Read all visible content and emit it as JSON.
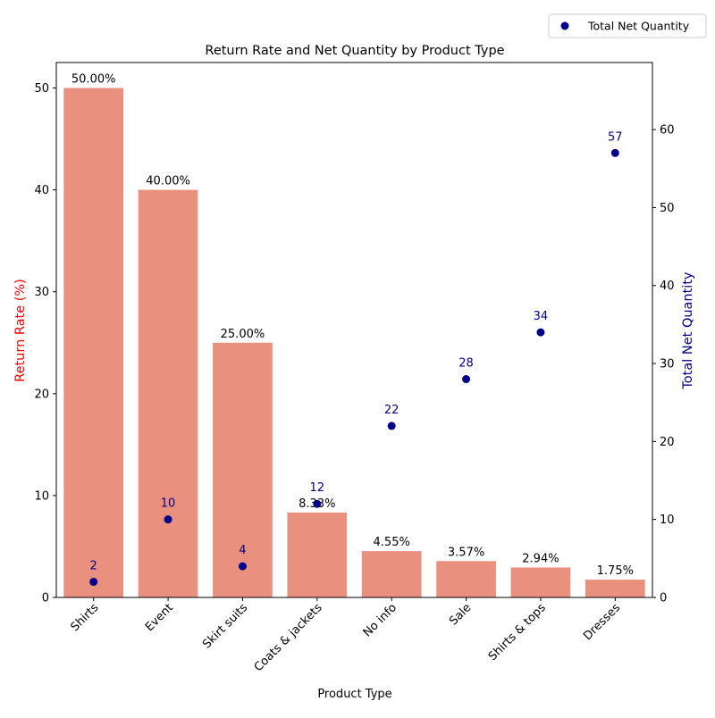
{
  "chart_data": {
    "type": "bar",
    "title": "Return Rate and Net Quantity by Product Type",
    "xlabel": "Product Type",
    "ylabel_left": "Return Rate (%)",
    "ylabel_right": "Total Net Quantity",
    "categories": [
      "Shirts",
      "Event",
      "Skirt suits",
      "Coats & jackets",
      "No info",
      "Sale",
      "Shirts & tops",
      "Dresses"
    ],
    "series": [
      {
        "name": "Return Rate (%)",
        "type": "bar",
        "axis": "left",
        "values": [
          50.0,
          40.0,
          25.0,
          8.33,
          4.55,
          3.57,
          2.94,
          1.75
        ],
        "labels": [
          "50.00%",
          "40.00%",
          "25.00%",
          "8.33%",
          "4.55%",
          "3.57%",
          "2.94%",
          "1.75%"
        ],
        "color": "#e9907f"
      },
      {
        "name": "Total Net Quantity",
        "type": "scatter",
        "axis": "right",
        "values": [
          2,
          10,
          4,
          12,
          22,
          28,
          34,
          57
        ],
        "labels": [
          "2",
          "10",
          "4",
          "12",
          "22",
          "28",
          "34",
          "57"
        ],
        "color": "#00008b"
      }
    ],
    "ylim_left": [
      0,
      52.5
    ],
    "ylim_right": [
      0,
      68.6
    ],
    "yticks_left": [
      "0",
      "10",
      "20",
      "30",
      "40",
      "50"
    ],
    "yticks_right": [
      "0",
      "10",
      "20",
      "30",
      "40",
      "50",
      "60"
    ],
    "legend": {
      "entries": [
        "Total Net Quantity"
      ],
      "placement": "top-right"
    },
    "colors": {
      "left_axis_label": "#ff0000",
      "right_axis_label": "#00008b"
    },
    "grid": false
  }
}
